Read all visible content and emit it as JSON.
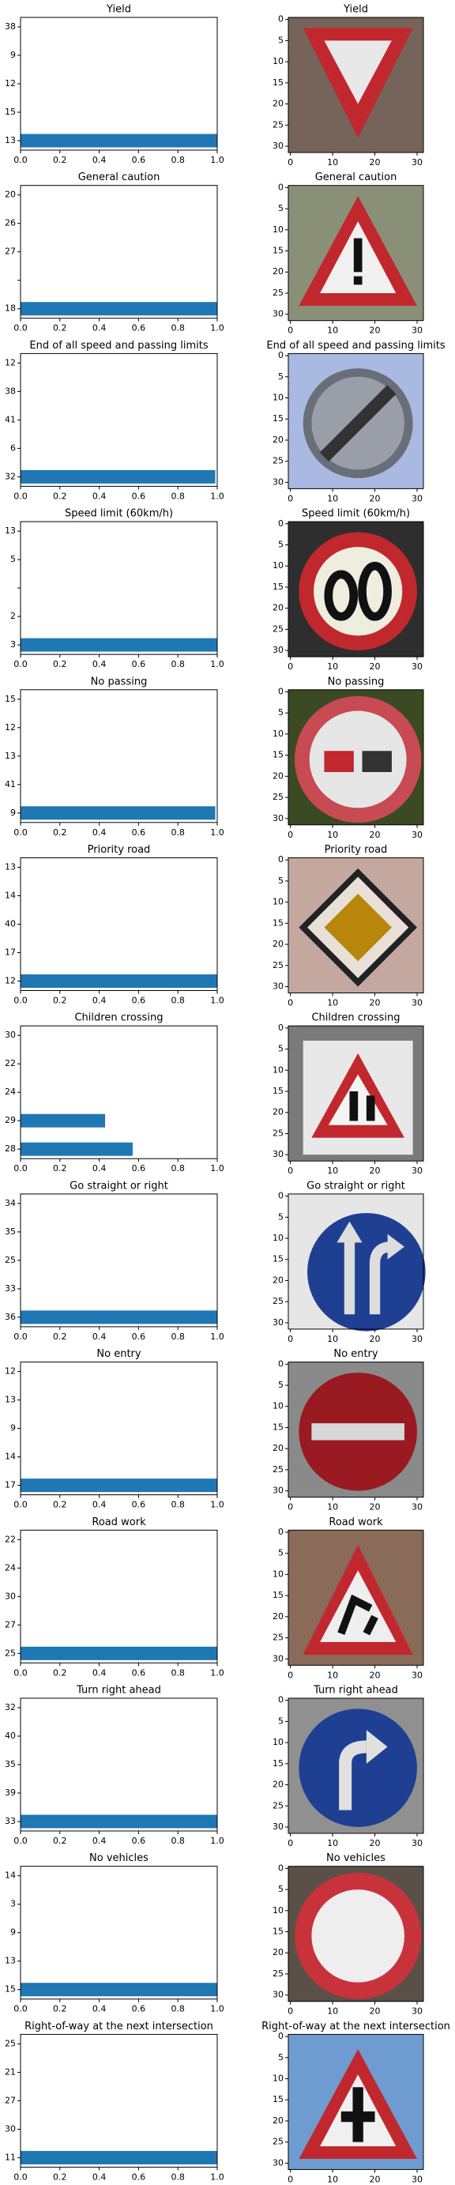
{
  "chart_data": [
    {
      "type": "barh",
      "title": "Yield",
      "categories": [
        "38",
        "9",
        "12",
        "15",
        "13"
      ],
      "values": [
        0,
        0,
        0,
        0,
        1.0
      ],
      "color": "#1f77b4",
      "xlim": [
        0,
        1
      ],
      "xticks": [
        {
          "value": 0,
          "label": "0.0"
        },
        {
          "value": 0.2,
          "label": "0.2"
        },
        {
          "value": 0.4,
          "label": "0.4"
        },
        {
          "value": 0.6,
          "label": "0.6"
        },
        {
          "value": 0.8,
          "label": "0.8"
        },
        {
          "value": 1,
          "label": "1.0"
        }
      ]
    },
    {
      "type": "image",
      "title": "Yield",
      "xlim": [
        -0.5,
        31.5
      ],
      "ylim": [
        31.5,
        -0.5
      ],
      "xticks": [
        0,
        10,
        20,
        30
      ],
      "yticks": [
        0,
        5,
        10,
        15,
        20,
        25,
        30
      ]
    },
    {
      "type": "barh",
      "title": "General caution",
      "categories": [
        "20",
        "26",
        "27",
        null,
        "18"
      ],
      "values": [
        0,
        0,
        0,
        0,
        1.0
      ],
      "color": "#1f77b4",
      "xlim": [
        0,
        1
      ],
      "xticks": [
        {
          "value": 0,
          "label": "0.0"
        },
        {
          "value": 0.2,
          "label": "0.2"
        },
        {
          "value": 0.4,
          "label": "0.4"
        },
        {
          "value": 0.6,
          "label": "0.6"
        },
        {
          "value": 0.8,
          "label": "0.8"
        },
        {
          "value": 1,
          "label": "1.0"
        }
      ]
    },
    {
      "type": "image",
      "title": "General caution",
      "xlim": [
        -0.5,
        31.5
      ],
      "ylim": [
        31.5,
        -0.5
      ],
      "xticks": [
        0,
        10,
        20,
        30
      ],
      "yticks": [
        0,
        5,
        10,
        15,
        20,
        25,
        30
      ]
    },
    {
      "type": "barh",
      "title": "End of all speed and passing limits",
      "categories": [
        "12",
        "38",
        "41",
        "6",
        "32"
      ],
      "values": [
        0,
        0,
        0,
        0,
        0.99
      ],
      "color": "#1f77b4",
      "xlim": [
        0,
        1
      ],
      "xticks": [
        {
          "value": 0,
          "label": "0.0"
        },
        {
          "value": 0.2,
          "label": "0.2"
        },
        {
          "value": 0.4,
          "label": "0.4"
        },
        {
          "value": 0.6,
          "label": "0.6"
        },
        {
          "value": 0.8,
          "label": "0.8"
        },
        {
          "value": 1,
          "label": "1.0"
        }
      ]
    },
    {
      "type": "image",
      "title": "End of all speed and passing limits",
      "xlim": [
        -0.5,
        31.5
      ],
      "ylim": [
        31.5,
        -0.5
      ],
      "xticks": [
        0,
        10,
        20,
        30
      ],
      "yticks": [
        0,
        5,
        10,
        15,
        20,
        25,
        30
      ]
    },
    {
      "type": "barh",
      "title": "Speed limit (60km/h)",
      "categories": [
        "13",
        "5",
        null,
        "2",
        "3"
      ],
      "values": [
        0,
        0,
        0,
        0,
        1.0
      ],
      "color": "#1f77b4",
      "xlim": [
        0,
        1
      ],
      "xticks": [
        {
          "value": 0,
          "label": "0.0"
        },
        {
          "value": 0.2,
          "label": "0.2"
        },
        {
          "value": 0.4,
          "label": "0.4"
        },
        {
          "value": 0.6,
          "label": "0.6"
        },
        {
          "value": 0.8,
          "label": "0.8"
        },
        {
          "value": 1,
          "label": "1.0"
        }
      ]
    },
    {
      "type": "image",
      "title": "Speed limit (60km/h)",
      "xlim": [
        -0.5,
        31.5
      ],
      "ylim": [
        31.5,
        -0.5
      ],
      "xticks": [
        0,
        10,
        20,
        30
      ],
      "yticks": [
        0,
        5,
        10,
        15,
        20,
        25,
        30
      ]
    },
    {
      "type": "barh",
      "title": "No passing",
      "categories": [
        "15",
        "12",
        "13",
        "41",
        "9"
      ],
      "values": [
        0,
        0,
        0,
        0,
        0.99
      ],
      "color": "#1f77b4",
      "xlim": [
        0,
        1
      ],
      "xticks": [
        {
          "value": 0,
          "label": "0.0"
        },
        {
          "value": 0.2,
          "label": "0.2"
        },
        {
          "value": 0.4,
          "label": "0.4"
        },
        {
          "value": 0.6,
          "label": "0.6"
        },
        {
          "value": 0.8,
          "label": "0.8"
        },
        {
          "value": 1,
          "label": "1.0"
        }
      ]
    },
    {
      "type": "image",
      "title": "No passing",
      "xlim": [
        -0.5,
        31.5
      ],
      "ylim": [
        31.5,
        -0.5
      ],
      "xticks": [
        0,
        10,
        20,
        30
      ],
      "yticks": [
        0,
        5,
        10,
        15,
        20,
        25,
        30
      ]
    },
    {
      "type": "barh",
      "title": "Priority road",
      "categories": [
        "13",
        "14",
        "40",
        "17",
        "12"
      ],
      "values": [
        0,
        0,
        0,
        0,
        1.0
      ],
      "color": "#1f77b4",
      "xlim": [
        0,
        1
      ],
      "xticks": [
        {
          "value": 0,
          "label": "0.0"
        },
        {
          "value": 0.2,
          "label": "0.2"
        },
        {
          "value": 0.4,
          "label": "0.4"
        },
        {
          "value": 0.6,
          "label": "0.6"
        },
        {
          "value": 0.8,
          "label": "0.8"
        },
        {
          "value": 1,
          "label": "1.0"
        }
      ]
    },
    {
      "type": "image",
      "title": "Priority road",
      "xlim": [
        -0.5,
        31.5
      ],
      "ylim": [
        31.5,
        -0.5
      ],
      "xticks": [
        0,
        10,
        20,
        30
      ],
      "yticks": [
        0,
        5,
        10,
        15,
        20,
        25,
        30
      ]
    },
    {
      "type": "barh",
      "title": "Children crossing",
      "categories": [
        "30",
        "22",
        "24",
        "29",
        "28"
      ],
      "values": [
        0,
        0,
        0,
        0.43,
        0.57
      ],
      "color": "#1f77b4",
      "xlim": [
        0,
        1
      ],
      "xticks": [
        {
          "value": 0,
          "label": "0.0"
        },
        {
          "value": 0.2,
          "label": "0.2"
        },
        {
          "value": 0.4,
          "label": "0.4"
        },
        {
          "value": 0.6,
          "label": "0.6"
        },
        {
          "value": 0.8,
          "label": "0.8"
        },
        {
          "value": 1,
          "label": "1.0"
        }
      ]
    },
    {
      "type": "image",
      "title": "Children crossing",
      "xlim": [
        -0.5,
        31.5
      ],
      "ylim": [
        31.5,
        -0.5
      ],
      "xticks": [
        0,
        10,
        20,
        30
      ],
      "yticks": [
        0,
        5,
        10,
        15,
        20,
        25,
        30
      ]
    },
    {
      "type": "barh",
      "title": "Go straight or right",
      "categories": [
        "34",
        "35",
        "25",
        "33",
        "36"
      ],
      "values": [
        0,
        0,
        0,
        0,
        1.0
      ],
      "color": "#1f77b4",
      "xlim": [
        0,
        1
      ],
      "xticks": [
        {
          "value": 0,
          "label": "0.0"
        },
        {
          "value": 0.2,
          "label": "0.2"
        },
        {
          "value": 0.4,
          "label": "0.4"
        },
        {
          "value": 0.6,
          "label": "0.6"
        },
        {
          "value": 0.8,
          "label": "0.8"
        },
        {
          "value": 1,
          "label": "1.0"
        }
      ]
    },
    {
      "type": "image",
      "title": "Go straight or right",
      "xlim": [
        -0.5,
        31.5
      ],
      "ylim": [
        31.5,
        -0.5
      ],
      "xticks": [
        0,
        10,
        20,
        30
      ],
      "yticks": [
        0,
        5,
        10,
        15,
        20,
        25,
        30
      ]
    },
    {
      "type": "barh",
      "title": "No entry",
      "categories": [
        "12",
        "13",
        "9",
        "14",
        "17"
      ],
      "values": [
        0,
        0,
        0,
        0,
        1.0
      ],
      "color": "#1f77b4",
      "xlim": [
        0,
        1
      ],
      "xticks": [
        {
          "value": 0,
          "label": "0.0"
        },
        {
          "value": 0.2,
          "label": "0.2"
        },
        {
          "value": 0.4,
          "label": "0.4"
        },
        {
          "value": 0.6,
          "label": "0.6"
        },
        {
          "value": 0.8,
          "label": "0.8"
        },
        {
          "value": 1,
          "label": "1.0"
        }
      ]
    },
    {
      "type": "image",
      "title": "No entry",
      "xlim": [
        -0.5,
        31.5
      ],
      "ylim": [
        31.5,
        -0.5
      ],
      "xticks": [
        0,
        10,
        20,
        30
      ],
      "yticks": [
        0,
        5,
        10,
        15,
        20,
        25,
        30
      ]
    },
    {
      "type": "barh",
      "title": "Road work",
      "categories": [
        "22",
        "24",
        "30",
        "27",
        "25"
      ],
      "values": [
        0,
        0,
        0,
        0,
        1.0
      ],
      "color": "#1f77b4",
      "xlim": [
        0,
        1
      ],
      "xticks": [
        {
          "value": 0,
          "label": "0.0"
        },
        {
          "value": 0.2,
          "label": "0.2"
        },
        {
          "value": 0.4,
          "label": "0.4"
        },
        {
          "value": 0.6,
          "label": "0.6"
        },
        {
          "value": 0.8,
          "label": "0.8"
        },
        {
          "value": 1,
          "label": "1.0"
        }
      ]
    },
    {
      "type": "image",
      "title": "Road work",
      "xlim": [
        -0.5,
        31.5
      ],
      "ylim": [
        31.5,
        -0.5
      ],
      "xticks": [
        0,
        10,
        20,
        30
      ],
      "yticks": [
        0,
        5,
        10,
        15,
        20,
        25,
        30
      ]
    },
    {
      "type": "barh",
      "title": "Turn right ahead",
      "categories": [
        "32",
        "40",
        "35",
        "39",
        "33"
      ],
      "values": [
        0,
        0,
        0,
        0,
        1.0
      ],
      "color": "#1f77b4",
      "xlim": [
        0,
        1
      ],
      "xticks": [
        {
          "value": 0,
          "label": "0.0"
        },
        {
          "value": 0.2,
          "label": "0.2"
        },
        {
          "value": 0.4,
          "label": "0.4"
        },
        {
          "value": 0.6,
          "label": "0.6"
        },
        {
          "value": 0.8,
          "label": "0.8"
        },
        {
          "value": 1,
          "label": "1.0"
        }
      ]
    },
    {
      "type": "image",
      "title": "Turn right ahead",
      "xlim": [
        -0.5,
        31.5
      ],
      "ylim": [
        31.5,
        -0.5
      ],
      "xticks": [
        0,
        10,
        20,
        30
      ],
      "yticks": [
        0,
        5,
        10,
        15,
        20,
        25,
        30
      ]
    },
    {
      "type": "barh",
      "title": "No vehicles",
      "categories": [
        "14",
        "3",
        "9",
        "13",
        "15"
      ],
      "values": [
        0,
        0,
        0,
        0,
        1.0
      ],
      "color": "#1f77b4",
      "xlim": [
        0,
        1
      ],
      "xticks": [
        {
          "value": 0,
          "label": "0.0"
        },
        {
          "value": 0.2,
          "label": "0.2"
        },
        {
          "value": 0.4,
          "label": "0.4"
        },
        {
          "value": 0.6,
          "label": "0.6"
        },
        {
          "value": 0.8,
          "label": "0.8"
        },
        {
          "value": 1,
          "label": "1.0"
        }
      ]
    },
    {
      "type": "image",
      "title": "No vehicles",
      "xlim": [
        -0.5,
        31.5
      ],
      "ylim": [
        31.5,
        -0.5
      ],
      "xticks": [
        0,
        10,
        20,
        30
      ],
      "yticks": [
        0,
        5,
        10,
        15,
        20,
        25,
        30
      ]
    },
    {
      "type": "barh",
      "title": "Right-of-way at the next intersection",
      "categories": [
        "25",
        "21",
        "27",
        "30",
        "11"
      ],
      "values": [
        0,
        0,
        0,
        0,
        1.0
      ],
      "color": "#1f77b4",
      "xlim": [
        0,
        1
      ],
      "xticks": [
        {
          "value": 0,
          "label": "0.0"
        },
        {
          "value": 0.2,
          "label": "0.2"
        },
        {
          "value": 0.4,
          "label": "0.4"
        },
        {
          "value": 0.6,
          "label": "0.6"
        },
        {
          "value": 0.8,
          "label": "0.8"
        },
        {
          "value": 1,
          "label": "1.0"
        }
      ]
    },
    {
      "type": "image",
      "title": "Right-of-way at the next intersection",
      "xlim": [
        -0.5,
        31.5
      ],
      "ylim": [
        31.5,
        -0.5
      ],
      "xticks": [
        0,
        10,
        20,
        30
      ],
      "yticks": [
        0,
        5,
        10,
        15,
        20,
        25,
        30
      ]
    }
  ]
}
